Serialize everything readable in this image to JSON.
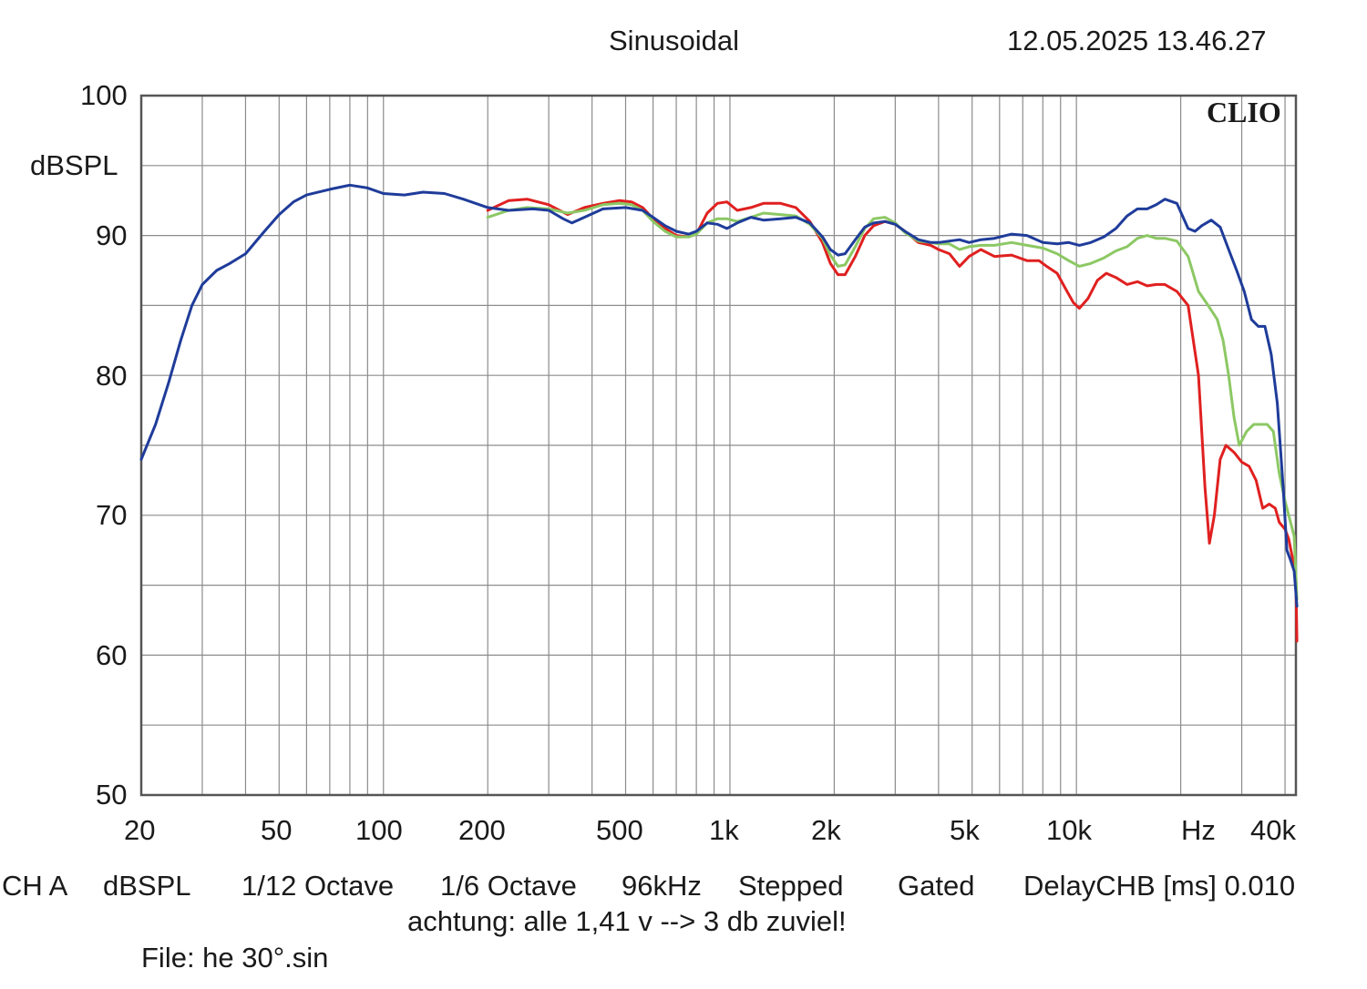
{
  "header": {
    "mode": "Sinusoidal",
    "datetime": "12.05.2025 13.46.27",
    "logo": "CLIO"
  },
  "footer": {
    "channel": "CH A",
    "unit": "dBSPL",
    "smoothing": "1/12 Octave",
    "resolution": "1/6 Octave",
    "sample_rate": "96kHz",
    "method": "Stepped",
    "window": "Gated",
    "delay": "DelayCHB [ms] 0.010",
    "note": "achtung: alle 1,41 v --> 3 db zuviel!",
    "file": "File: he 30°.sin"
  },
  "colors": {
    "background": "#ffffff",
    "grid": "#8c8c8c",
    "frame": "#555555",
    "red": "#e02020",
    "green": "#8cc864",
    "blue": "#1f3c9a"
  },
  "chart_data": {
    "type": "line",
    "xscale": "log",
    "xlim": [
      20,
      43000
    ],
    "ylim": [
      50,
      100
    ],
    "ylabel": "dBSPL",
    "xlabel": "Hz",
    "grid": true,
    "y_ticks": [
      "100",
      "90",
      "80",
      "70",
      "60",
      "50"
    ],
    "x_ticks": [
      "20",
      "50",
      "100",
      "200",
      "500",
      "1k",
      "2k",
      "5k",
      "10k",
      "Hz",
      "40k"
    ],
    "series": [
      {
        "color": "#e02020",
        "points": [
          [
            200,
            91.8
          ],
          [
            230,
            92.5
          ],
          [
            260,
            92.6
          ],
          [
            300,
            92.2
          ],
          [
            340,
            91.5
          ],
          [
            380,
            92.0
          ],
          [
            430,
            92.3
          ],
          [
            480,
            92.5
          ],
          [
            520,
            92.4
          ],
          [
            560,
            92.0
          ],
          [
            600,
            91.2
          ],
          [
            650,
            90.5
          ],
          [
            700,
            90.0
          ],
          [
            760,
            89.9
          ],
          [
            800,
            90.1
          ],
          [
            860,
            91.6
          ],
          [
            920,
            92.3
          ],
          [
            980,
            92.4
          ],
          [
            1050,
            91.8
          ],
          [
            1150,
            92.0
          ],
          [
            1250,
            92.3
          ],
          [
            1400,
            92.3
          ],
          [
            1550,
            92.0
          ],
          [
            1700,
            91.0
          ],
          [
            1850,
            89.5
          ],
          [
            1950,
            88.0
          ],
          [
            2050,
            87.2
          ],
          [
            2150,
            87.2
          ],
          [
            2300,
            88.5
          ],
          [
            2450,
            90.0
          ],
          [
            2600,
            90.7
          ],
          [
            2800,
            91.0
          ],
          [
            3000,
            90.8
          ],
          [
            3200,
            90.3
          ],
          [
            3500,
            89.5
          ],
          [
            3800,
            89.3
          ],
          [
            4000,
            89.0
          ],
          [
            4300,
            88.7
          ],
          [
            4600,
            87.8
          ],
          [
            4900,
            88.5
          ],
          [
            5300,
            89.0
          ],
          [
            5800,
            88.5
          ],
          [
            6500,
            88.6
          ],
          [
            7200,
            88.2
          ],
          [
            7800,
            88.2
          ],
          [
            8200,
            87.8
          ],
          [
            8800,
            87.3
          ],
          [
            9300,
            86.2
          ],
          [
            9800,
            85.2
          ],
          [
            10200,
            84.8
          ],
          [
            10800,
            85.5
          ],
          [
            11500,
            86.8
          ],
          [
            12200,
            87.3
          ],
          [
            13000,
            87.0
          ],
          [
            14000,
            86.5
          ],
          [
            15000,
            86.7
          ],
          [
            16000,
            86.4
          ],
          [
            17000,
            86.5
          ],
          [
            18000,
            86.5
          ],
          [
            19500,
            86.0
          ],
          [
            21000,
            85.0
          ],
          [
            22500,
            80.0
          ],
          [
            23500,
            72.0
          ],
          [
            24200,
            68.0
          ],
          [
            25000,
            70.0
          ],
          [
            26000,
            74.0
          ],
          [
            27000,
            75.0
          ],
          [
            28500,
            74.5
          ],
          [
            30000,
            73.8
          ],
          [
            31500,
            73.5
          ],
          [
            33000,
            72.5
          ],
          [
            34500,
            70.5
          ],
          [
            36000,
            70.8
          ],
          [
            37500,
            70.5
          ],
          [
            38500,
            69.5
          ],
          [
            40000,
            69.0
          ],
          [
            41000,
            68.3
          ],
          [
            42000,
            67.0
          ],
          [
            43000,
            65.5
          ],
          [
            43300,
            61.0
          ]
        ]
      },
      {
        "color": "#8cc864",
        "points": [
          [
            200,
            91.3
          ],
          [
            230,
            91.8
          ],
          [
            260,
            92.0
          ],
          [
            300,
            91.9
          ],
          [
            340,
            91.6
          ],
          [
            380,
            91.8
          ],
          [
            430,
            92.2
          ],
          [
            480,
            92.3
          ],
          [
            520,
            92.2
          ],
          [
            560,
            91.8
          ],
          [
            600,
            91.0
          ],
          [
            650,
            90.3
          ],
          [
            700,
            89.9
          ],
          [
            760,
            89.9
          ],
          [
            800,
            90.1
          ],
          [
            860,
            90.9
          ],
          [
            920,
            91.2
          ],
          [
            980,
            91.2
          ],
          [
            1050,
            91.0
          ],
          [
            1150,
            91.3
          ],
          [
            1250,
            91.6
          ],
          [
            1400,
            91.5
          ],
          [
            1550,
            91.4
          ],
          [
            1700,
            90.8
          ],
          [
            1850,
            89.8
          ],
          [
            1950,
            88.6
          ],
          [
            2050,
            87.8
          ],
          [
            2150,
            87.9
          ],
          [
            2300,
            89.2
          ],
          [
            2450,
            90.5
          ],
          [
            2600,
            91.2
          ],
          [
            2800,
            91.3
          ],
          [
            3000,
            90.9
          ],
          [
            3200,
            90.2
          ],
          [
            3500,
            89.6
          ],
          [
            3800,
            89.5
          ],
          [
            4000,
            89.4
          ],
          [
            4300,
            89.4
          ],
          [
            4600,
            89.0
          ],
          [
            4900,
            89.2
          ],
          [
            5300,
            89.3
          ],
          [
            5800,
            89.3
          ],
          [
            6500,
            89.5
          ],
          [
            7200,
            89.3
          ],
          [
            8000,
            89.1
          ],
          [
            8800,
            88.7
          ],
          [
            9500,
            88.2
          ],
          [
            10200,
            87.8
          ],
          [
            11000,
            88.0
          ],
          [
            12000,
            88.4
          ],
          [
            13000,
            88.9
          ],
          [
            14000,
            89.2
          ],
          [
            15000,
            89.8
          ],
          [
            16000,
            90.0
          ],
          [
            17000,
            89.8
          ],
          [
            18000,
            89.8
          ],
          [
            19500,
            89.6
          ],
          [
            21000,
            88.5
          ],
          [
            22500,
            86.0
          ],
          [
            24000,
            85.0
          ],
          [
            25500,
            84.0
          ],
          [
            26500,
            82.5
          ],
          [
            27500,
            80.0
          ],
          [
            28500,
            77.0
          ],
          [
            29500,
            75.0
          ],
          [
            31000,
            76.0
          ],
          [
            32500,
            76.5
          ],
          [
            34000,
            76.5
          ],
          [
            35500,
            76.5
          ],
          [
            37000,
            76.0
          ],
          [
            38500,
            73.0
          ],
          [
            40000,
            71.0
          ],
          [
            41500,
            69.5
          ],
          [
            42500,
            68.5
          ],
          [
            43300,
            64.0
          ]
        ]
      },
      {
        "color": "#1f3c9a",
        "points": [
          [
            20,
            74.0
          ],
          [
            22,
            76.5
          ],
          [
            24,
            79.5
          ],
          [
            26,
            82.5
          ],
          [
            28,
            85.0
          ],
          [
            30,
            86.5
          ],
          [
            33,
            87.5
          ],
          [
            36,
            88.0
          ],
          [
            40,
            88.7
          ],
          [
            45,
            90.2
          ],
          [
            50,
            91.5
          ],
          [
            55,
            92.4
          ],
          [
            60,
            92.9
          ],
          [
            70,
            93.3
          ],
          [
            80,
            93.6
          ],
          [
            90,
            93.4
          ],
          [
            100,
            93.0
          ],
          [
            115,
            92.9
          ],
          [
            130,
            93.1
          ],
          [
            150,
            93.0
          ],
          [
            170,
            92.6
          ],
          [
            200,
            92.0
          ],
          [
            230,
            91.8
          ],
          [
            270,
            91.9
          ],
          [
            300,
            91.8
          ],
          [
            330,
            91.2
          ],
          [
            350,
            90.9
          ],
          [
            380,
            91.3
          ],
          [
            430,
            91.9
          ],
          [
            500,
            92.0
          ],
          [
            560,
            91.8
          ],
          [
            600,
            91.3
          ],
          [
            650,
            90.7
          ],
          [
            700,
            90.3
          ],
          [
            760,
            90.1
          ],
          [
            800,
            90.3
          ],
          [
            860,
            90.9
          ],
          [
            920,
            90.8
          ],
          [
            980,
            90.5
          ],
          [
            1050,
            90.9
          ],
          [
            1150,
            91.3
          ],
          [
            1250,
            91.1
          ],
          [
            1400,
            91.2
          ],
          [
            1550,
            91.3
          ],
          [
            1700,
            90.9
          ],
          [
            1850,
            89.9
          ],
          [
            1950,
            89.0
          ],
          [
            2050,
            88.6
          ],
          [
            2150,
            88.7
          ],
          [
            2300,
            89.7
          ],
          [
            2450,
            90.6
          ],
          [
            2600,
            90.9
          ],
          [
            2800,
            91.0
          ],
          [
            3000,
            90.8
          ],
          [
            3200,
            90.3
          ],
          [
            3500,
            89.7
          ],
          [
            3800,
            89.5
          ],
          [
            4000,
            89.5
          ],
          [
            4300,
            89.6
          ],
          [
            4600,
            89.7
          ],
          [
            4900,
            89.5
          ],
          [
            5300,
            89.7
          ],
          [
            5800,
            89.8
          ],
          [
            6500,
            90.1
          ],
          [
            7200,
            90.0
          ],
          [
            8000,
            89.5
          ],
          [
            8800,
            89.4
          ],
          [
            9500,
            89.5
          ],
          [
            10200,
            89.3
          ],
          [
            11000,
            89.5
          ],
          [
            12000,
            89.9
          ],
          [
            13000,
            90.5
          ],
          [
            14000,
            91.4
          ],
          [
            15000,
            91.9
          ],
          [
            16000,
            91.9
          ],
          [
            17000,
            92.2
          ],
          [
            18000,
            92.6
          ],
          [
            19500,
            92.3
          ],
          [
            21000,
            90.5
          ],
          [
            22000,
            90.3
          ],
          [
            23000,
            90.7
          ],
          [
            24500,
            91.1
          ],
          [
            26000,
            90.6
          ],
          [
            27500,
            89.0
          ],
          [
            29000,
            87.5
          ],
          [
            30500,
            86.0
          ],
          [
            32000,
            84.0
          ],
          [
            33500,
            83.5
          ],
          [
            35000,
            83.5
          ],
          [
            36500,
            81.5
          ],
          [
            38000,
            78.0
          ],
          [
            39500,
            72.0
          ],
          [
            40500,
            67.5
          ],
          [
            41500,
            66.8
          ],
          [
            42500,
            66.0
          ],
          [
            43300,
            63.5
          ]
        ]
      }
    ]
  }
}
